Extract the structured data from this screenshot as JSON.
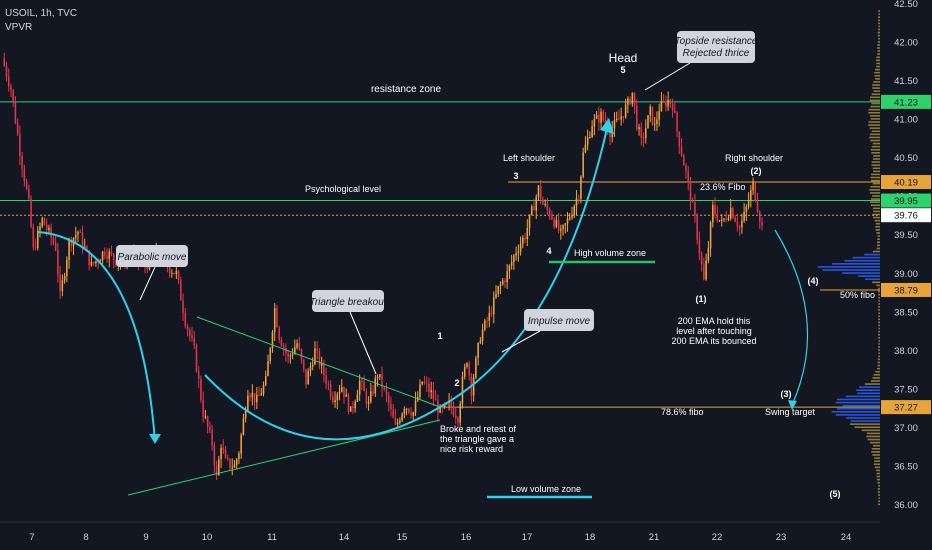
{
  "header": {
    "symbol": "USOIL, 1h, TVC",
    "indicator": "VPVR"
  },
  "colors": {
    "up": "#f2a33a",
    "down": "#e0354a",
    "green": "#2fd16a",
    "orange": "#e8a33a",
    "cyan": "#2fd0e8",
    "bg": "#131722"
  },
  "chart_data": {
    "type": "candlestick",
    "ylim": [
      35.95,
      42.5
    ],
    "yticks": [
      "42.50",
      "42.00",
      "41.50",
      "41.00",
      "40.50",
      "40.00",
      "39.50",
      "39.00",
      "38.50",
      "38.00",
      "37.50",
      "37.00",
      "36.50",
      "36.00"
    ],
    "xticks": [
      "7",
      "8",
      "9",
      "10",
      "11",
      "14",
      "15",
      "16",
      "17",
      "18",
      "21",
      "22",
      "23",
      "24"
    ],
    "close_path": [
      [
        0,
        41.8
      ],
      [
        4,
        41.4
      ],
      [
        8,
        40.6
      ],
      [
        12,
        39.9
      ],
      [
        14,
        39.3
      ],
      [
        18,
        39.7
      ],
      [
        24,
        39.35
      ],
      [
        26,
        38.7
      ],
      [
        30,
        39.4
      ],
      [
        34,
        39.55
      ],
      [
        40,
        39.1
      ],
      [
        46,
        39.3
      ],
      [
        52,
        39.15
      ],
      [
        58,
        39.25
      ],
      [
        64,
        39.1
      ],
      [
        70,
        39.3
      ],
      [
        74,
        39.1
      ],
      [
        78,
        39.0
      ],
      [
        82,
        38.4
      ],
      [
        86,
        38.0
      ],
      [
        90,
        37.2
      ],
      [
        94,
        36.8
      ],
      [
        96,
        36.35
      ],
      [
        98,
        36.8
      ],
      [
        100,
        36.55
      ],
      [
        104,
        36.5
      ],
      [
        106,
        36.7
      ],
      [
        110,
        37.5
      ],
      [
        114,
        37.35
      ],
      [
        118,
        37.6
      ],
      [
        122,
        38.55
      ],
      [
        124,
        38.2
      ],
      [
        128,
        37.9
      ],
      [
        132,
        38.1
      ],
      [
        136,
        37.6
      ],
      [
        140,
        38.0
      ],
      [
        144,
        37.7
      ],
      [
        148,
        37.4
      ],
      [
        152,
        37.55
      ],
      [
        156,
        37.2
      ],
      [
        160,
        37.6
      ],
      [
        164,
        37.3
      ],
      [
        168,
        37.7
      ],
      [
        172,
        37.4
      ],
      [
        176,
        37.0
      ],
      [
        180,
        37.3
      ],
      [
        184,
        37.2
      ],
      [
        188,
        37.6
      ],
      [
        192,
        37.45
      ],
      [
        196,
        37.2
      ],
      [
        200,
        37.3
      ],
      [
        204,
        37.15
      ],
      [
        206,
        37.6
      ],
      [
        208,
        37.9
      ],
      [
        210,
        37.5
      ],
      [
        214,
        38.2
      ],
      [
        218,
        38.45
      ],
      [
        222,
        38.8
      ],
      [
        226,
        39.0
      ],
      [
        230,
        39.3
      ],
      [
        234,
        39.5
      ],
      [
        238,
        39.9
      ],
      [
        240,
        40.1
      ],
      [
        242,
        39.9
      ],
      [
        246,
        39.75
      ],
      [
        250,
        39.5
      ],
      [
        254,
        39.75
      ],
      [
        258,
        40.05
      ],
      [
        260,
        40.55
      ],
      [
        264,
        40.95
      ],
      [
        268,
        41.05
      ],
      [
        272,
        40.85
      ],
      [
        276,
        41.0
      ],
      [
        280,
        41.2
      ],
      [
        282,
        41.35
      ],
      [
        284,
        40.95
      ],
      [
        286,
        40.7
      ],
      [
        290,
        41.1
      ],
      [
        292,
        40.9
      ],
      [
        294,
        41.15
      ],
      [
        298,
        41.25
      ],
      [
        300,
        41.2
      ],
      [
        302,
        40.85
      ],
      [
        306,
        40.3
      ],
      [
        308,
        40.0
      ],
      [
        310,
        39.7
      ],
      [
        312,
        39.3
      ],
      [
        314,
        38.9
      ],
      [
        316,
        39.35
      ],
      [
        318,
        39.85
      ],
      [
        322,
        39.65
      ],
      [
        326,
        39.85
      ],
      [
        330,
        39.6
      ],
      [
        332,
        39.75
      ],
      [
        336,
        40.15
      ],
      [
        340,
        39.6
      ]
    ],
    "levels": [
      {
        "price": 41.23,
        "label": "41.23",
        "kind": "resistance"
      },
      {
        "price": 40.19,
        "label": "40.19",
        "kind": "fib"
      },
      {
        "price": 39.95,
        "label": "39.95",
        "kind": "psych"
      },
      {
        "price": 39.76,
        "label": "39.76",
        "kind": "last"
      },
      {
        "price": 38.79,
        "label": "38.79",
        "kind": "fib"
      },
      {
        "price": 37.27,
        "label": "37.27",
        "kind": "fib"
      }
    ]
  },
  "annotations": {
    "parabolic": "Parabolic move",
    "triangle": "Triangle breakout",
    "impulse": "Impulse move",
    "topside1": "Topside resistance",
    "topside2": "Rejected thrice",
    "head": "Head",
    "resistance_zone": "resistance zone",
    "psych": "Psychological level",
    "left_shoulder": "Left shoulder",
    "right_shoulder": "Right shoulder",
    "high_vol": "High volume zone",
    "low_vol": "Low volume zone",
    "fib236": "23.6% Fibo",
    "fib50": "50% fibo",
    "fib786": "78.6% fibo",
    "swing": "Swing target",
    "ema1": "200 EMA hold this",
    "ema2": "level after touching",
    "ema3": "200 EMA its bounced",
    "broke1": "Broke and retest of",
    "broke2": "the triangle gave a",
    "broke3": "nice risk reward",
    "n1": "1",
    "n2": "2",
    "n3": "3",
    "n4": "4",
    "n5": "5",
    "p1": "(1)",
    "p2": "(2)",
    "p3": "(3)",
    "p4": "(4)",
    "p5": "(5)"
  }
}
